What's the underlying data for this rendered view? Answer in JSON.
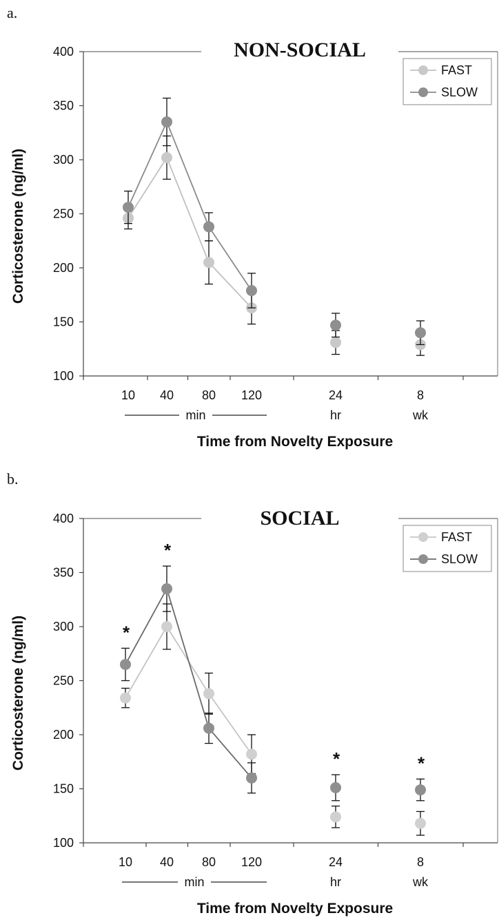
{
  "chart_data": [
    {
      "type": "line",
      "panel": "a.",
      "title": "NON-SOCIAL",
      "ylabel": "Corticosterone (ng/ml)",
      "xlabel": "Time from Novelty Exposure",
      "ylim": [
        100,
        400
      ],
      "yticks": [
        "100",
        "150",
        "200",
        "250",
        "300",
        "350",
        "400"
      ],
      "categories": [
        "10",
        "40",
        "80",
        "120",
        "24",
        "8"
      ],
      "unit_labels": [
        {
          "text": "min",
          "span": [
            "10",
            "120"
          ]
        },
        {
          "text": "hr",
          "under": "24"
        },
        {
          "text": "wk",
          "under": "8"
        }
      ],
      "legend": {
        "position": "top-right"
      },
      "grid": false,
      "series": [
        {
          "name": "FAST",
          "color": "#c9c9c9",
          "line_color": "#c0c0c0",
          "values": [
            246,
            302,
            205,
            163,
            131,
            129
          ],
          "errors": [
            10,
            20,
            20,
            15,
            11,
            10
          ],
          "connected_points": 4
        },
        {
          "name": "SLOW",
          "color": "#8f8f8f",
          "line_color": "#8a8a8a",
          "values": [
            256,
            335,
            238,
            179,
            147,
            140
          ],
          "errors": [
            15,
            22,
            13,
            16,
            11,
            11
          ],
          "connected_points": 4
        }
      ],
      "significance": []
    },
    {
      "type": "line",
      "panel": "b.",
      "title": "SOCIAL",
      "ylabel": "Corticosterone (ng/ml)",
      "xlabel": "Time from Novelty Exposure",
      "ylim": [
        100,
        400
      ],
      "yticks": [
        "100",
        "150",
        "200",
        "250",
        "300",
        "350",
        "400"
      ],
      "categories": [
        "10",
        "40",
        "80",
        "120",
        "24",
        "8"
      ],
      "unit_labels": [
        {
          "text": "min",
          "span": [
            "10",
            "120"
          ]
        },
        {
          "text": "hr",
          "under": "24"
        },
        {
          "text": "wk",
          "under": "8"
        }
      ],
      "legend": {
        "position": "top-right"
      },
      "grid": false,
      "series": [
        {
          "name": "FAST",
          "color": "#d0d0d0",
          "line_color": "#c4c4c4",
          "values": [
            234,
            300,
            238,
            182,
            124,
            118
          ],
          "errors": [
            9,
            21,
            19,
            18,
            10,
            11
          ],
          "connected_points": 4
        },
        {
          "name": "SLOW",
          "color": "#8f8f8f",
          "line_color": "#6a6a6a",
          "values": [
            265,
            335,
            206,
            160,
            151,
            149
          ],
          "errors": [
            15,
            21,
            14,
            14,
            12,
            10
          ],
          "connected_points": 4
        }
      ],
      "significance": [
        {
          "category": "10",
          "label": "*"
        },
        {
          "category": "40",
          "label": "*"
        },
        {
          "category": "24",
          "label": "*"
        },
        {
          "category": "8",
          "label": "*"
        }
      ]
    }
  ]
}
